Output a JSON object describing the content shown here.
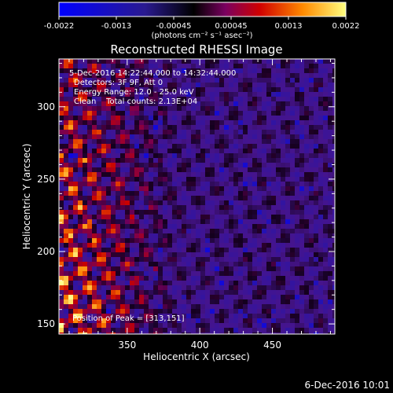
{
  "chart_data": {
    "type": "heatmap",
    "title": "Reconstructed RHESSI Image",
    "xlabel": "Heliocentric X (arcsec)",
    "ylabel": "Heliocentric Y (arcsec)",
    "xlim": [
      303,
      493
    ],
    "ylim": [
      143,
      333
    ],
    "x_ticks": [
      350,
      400,
      450
    ],
    "y_ticks": [
      150,
      200,
      250,
      300
    ],
    "colorbar": {
      "ticks": [
        "-0.0022",
        "-0.0013",
        "-0.00045",
        "0.00045",
        "0.0013",
        "0.0022"
      ],
      "range": [
        -0.0022,
        0.0022
      ],
      "unit_label": "(photons cm⁻² s⁻¹ asec⁻²)"
    },
    "annotations": {
      "time": "5-Dec-2016 14:22:44.000 to 14:32:44.000",
      "detectors": "Detectors: 3F 9F, Att 0",
      "energy": "Energy Range: 12.0 - 25.0 keV",
      "clean": "Clean    Total counts: 2.13E+04",
      "peak": "Position of Peak = [313,151]"
    },
    "peak_position": [
      313,
      151
    ],
    "footer": "6-Dec-2016 10:01"
  }
}
